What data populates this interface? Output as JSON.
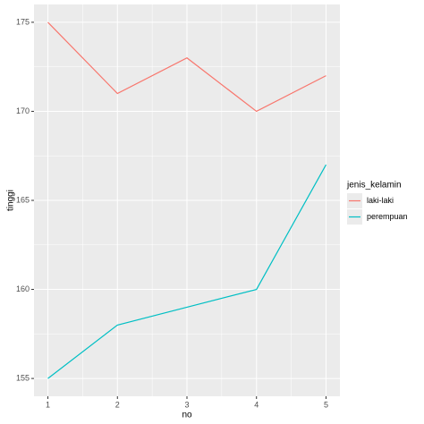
{
  "chart_data": {
    "type": "line",
    "x": [
      1,
      2,
      3,
      4,
      5
    ],
    "series": [
      {
        "name": "laki-laki",
        "color": "#F8766D",
        "values": [
          175,
          171,
          173,
          170,
          172
        ]
      },
      {
        "name": "perempuan",
        "color": "#00BFC4",
        "values": [
          155,
          158,
          159,
          160,
          167
        ]
      }
    ],
    "x_label": "no",
    "y_label": "tinggi",
    "legend_title": "jenis_kelamin",
    "xlim": [
      0.8,
      5.2
    ],
    "xticks": [
      1,
      2,
      3,
      4,
      5
    ],
    "ylim": [
      154,
      176
    ],
    "yticks": [
      155,
      160,
      165,
      170,
      175
    ],
    "grid": true,
    "legend": "right"
  }
}
